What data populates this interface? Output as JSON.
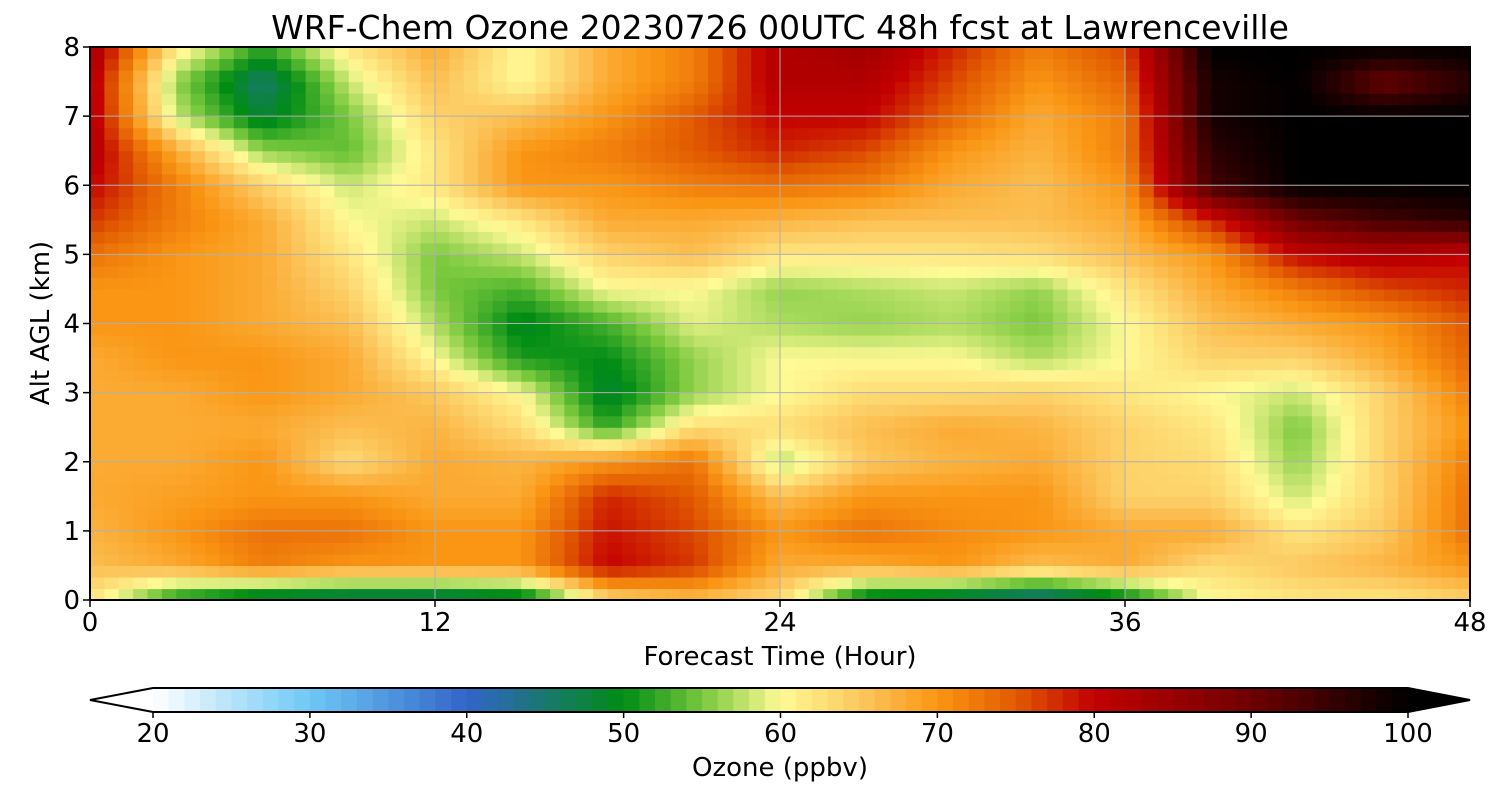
{
  "chart_data": {
    "type": "heatmap",
    "title": "WRF-Chem Ozone  20230726 00UTC 48h fcst at Lawrenceville",
    "xlabel": "Forecast Time (Hour)",
    "ylabel": "Alt AGL (km)",
    "xlim": [
      0,
      48
    ],
    "ylim": [
      0,
      8
    ],
    "x_ticks": [
      "0",
      "12",
      "24",
      "36",
      "48"
    ],
    "y_ticks": [
      "0",
      "1",
      "2",
      "3",
      "4",
      "5",
      "6",
      "7",
      "8"
    ],
    "grid": true,
    "colorbar": {
      "label": "Ozone  (ppbv)",
      "range": [
        20,
        100
      ],
      "extend": "both",
      "ticks": [
        "20",
        "30",
        "40",
        "50",
        "60",
        "70",
        "80",
        "90",
        "100"
      ]
    },
    "grid_x": [
      0,
      3,
      6,
      9,
      12,
      15,
      18,
      21,
      24,
      27,
      30,
      33,
      36,
      39,
      42,
      45,
      48
    ],
    "grid_y": [
      0,
      0.5,
      1,
      1.5,
      2,
      2.5,
      3,
      3.5,
      4,
      4.5,
      5,
      5.5,
      6,
      6.5,
      7,
      7.5,
      8
    ],
    "z": [
      [
        62,
        50,
        45,
        44,
        44,
        46,
        63,
        66,
        63,
        47,
        45,
        42,
        48,
        60,
        62,
        62,
        64
      ],
      [
        66,
        68,
        72,
        70,
        70,
        70,
        80,
        77,
        68,
        68,
        70,
        66,
        68,
        63,
        65,
        67,
        70
      ],
      [
        67,
        70,
        73,
        73,
        70,
        70,
        79,
        76,
        70,
        73,
        71,
        70,
        68,
        68,
        62,
        65,
        73
      ],
      [
        68,
        69,
        70,
        70,
        68,
        68,
        78,
        75,
        66,
        70,
        70,
        70,
        64,
        64,
        58,
        64,
        73
      ],
      [
        68,
        68,
        70,
        63,
        68,
        67,
        70,
        73,
        57,
        65,
        67,
        68,
        64,
        63,
        56,
        64,
        72
      ],
      [
        68,
        68,
        68,
        66,
        67,
        63,
        52,
        63,
        63,
        66,
        68,
        67,
        64,
        62,
        55,
        64,
        70
      ],
      [
        68,
        68,
        70,
        68,
        65,
        60,
        48,
        56,
        60,
        63,
        63,
        64,
        62,
        60,
        58,
        64,
        72
      ],
      [
        68,
        70,
        70,
        68,
        60,
        51,
        50,
        56,
        60,
        60,
        60,
        57,
        60,
        64,
        64,
        68,
        74
      ],
      [
        70,
        70,
        68,
        66,
        57,
        49,
        53,
        59,
        57,
        56,
        57,
        55,
        60,
        66,
        68,
        70,
        75
      ],
      [
        70,
        70,
        68,
        64,
        55,
        53,
        60,
        60,
        56,
        57,
        58,
        56,
        62,
        68,
        72,
        76,
        78
      ],
      [
        73,
        70,
        68,
        62,
        55,
        58,
        64,
        66,
        62,
        62,
        62,
        63,
        66,
        70,
        80,
        82,
        80
      ],
      [
        77,
        72,
        68,
        60,
        58,
        62,
        68,
        68,
        67,
        66,
        66,
        66,
        68,
        78,
        90,
        94,
        96
      ],
      [
        80,
        72,
        64,
        58,
        62,
        70,
        70,
        72,
        73,
        72,
        68,
        66,
        70,
        94,
        100,
        100,
        100
      ],
      [
        82,
        68,
        56,
        54,
        62,
        70,
        72,
        75,
        78,
        76,
        70,
        67,
        72,
        96,
        100,
        100,
        100
      ],
      [
        82,
        58,
        48,
        55,
        64,
        66,
        70,
        75,
        80,
        80,
        74,
        68,
        72,
        98,
        100,
        100,
        100
      ],
      [
        82,
        56,
        45,
        58,
        66,
        60,
        68,
        72,
        82,
        82,
        76,
        70,
        74,
        98,
        100,
        90,
        96
      ],
      [
        84,
        62,
        52,
        62,
        68,
        60,
        68,
        72,
        82,
        84,
        78,
        72,
        76,
        100,
        100,
        100,
        100
      ]
    ]
  }
}
